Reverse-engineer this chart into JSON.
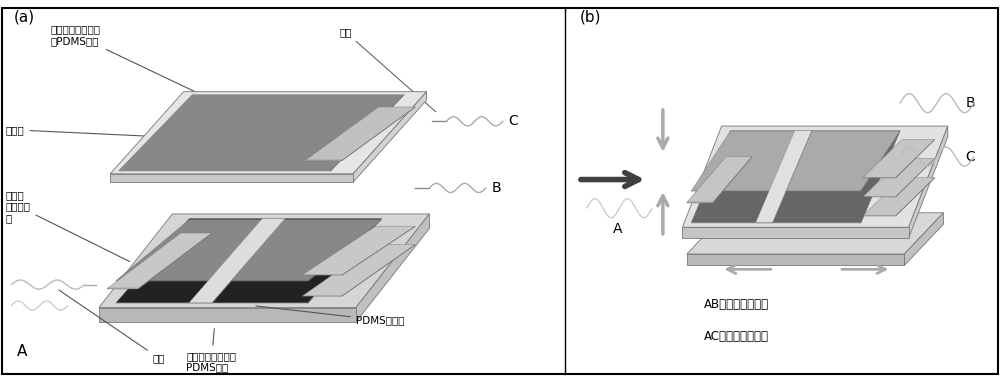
{
  "bg_color": "#ffffff",
  "panel_a_label": "(a)",
  "panel_b_label": "(b)",
  "label_a": "A",
  "label_b": "B",
  "label_c": "C",
  "label_color": "#000000",
  "text_labels_a": {
    "no_channel_pdms": "不具有表面微沟道\n的PDMS基底",
    "graphene": "石墨烯",
    "silver_electrode_left": "銀电极\n及导电胶\n带",
    "silver_electrode_right": "銀电极\n及导电胶\n带",
    "copper_wire_top": "铜线",
    "copper_wire_bot": "铜线",
    "channel_pdms": "具有表面微沟道的\nPDMS基底",
    "pdms_adhesive": "PDMS粘合剂"
  },
  "text_labels_b": {
    "ab_sense": "AB端主要感测应力",
    "ac_sense": "AC端主要感测压力"
  }
}
